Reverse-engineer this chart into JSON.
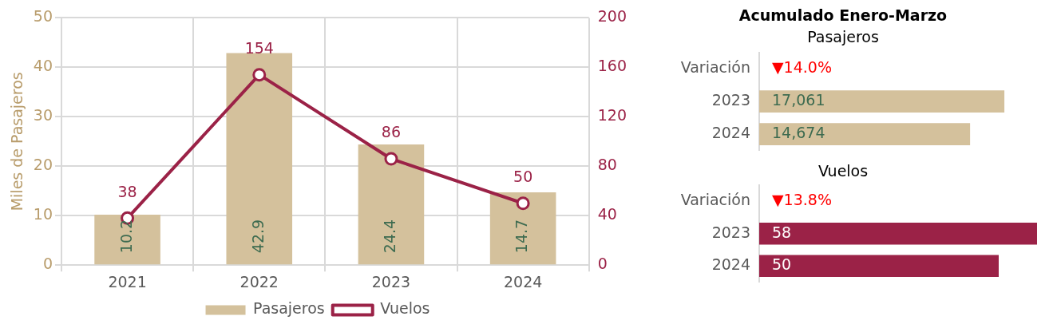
{
  "chart_data": [
    {
      "type": "bar",
      "ylabel": "Miles de Pasajeros",
      "categories": [
        "2021",
        "2022",
        "2023",
        "2024"
      ],
      "series": [
        {
          "name": "Pasajeros",
          "type": "bar",
          "color": "#d4c19c",
          "values": [
            10.2,
            42.9,
            24.4,
            14.7
          ]
        },
        {
          "name": "Vuelos",
          "type": "line",
          "axis": "y2",
          "color": "#9b2247",
          "values": [
            38,
            154,
            86,
            50
          ]
        }
      ],
      "ylim": [
        0,
        50
      ],
      "yticks": [
        0,
        10,
        20,
        30,
        40,
        50
      ],
      "y2lim": [
        0,
        200
      ],
      "y2ticks": [
        0,
        40,
        80,
        120,
        160,
        200
      ],
      "grid": true,
      "legend": "bottom",
      "data_labels": true,
      "marker": "circle"
    },
    {
      "type": "bar",
      "orientation": "horizontal",
      "title": "Acumulado Enero-Marzo",
      "subtitle": "Pasajeros",
      "categories": [
        "Variación",
        "2023",
        "2024"
      ],
      "values": [
        null,
        17061,
        14674
      ],
      "value_labels": [
        "▼14.0%",
        "17,061",
        "14,674"
      ],
      "color": "#d4c19c",
      "grid": false
    },
    {
      "type": "bar",
      "orientation": "horizontal",
      "title": "Vuelos",
      "categories": [
        "Variación",
        "2023",
        "2024"
      ],
      "values": [
        null,
        58,
        50
      ],
      "value_labels": [
        "▼13.8%",
        "58",
        "50"
      ],
      "color": "#9b2247",
      "grid": false
    }
  ]
}
